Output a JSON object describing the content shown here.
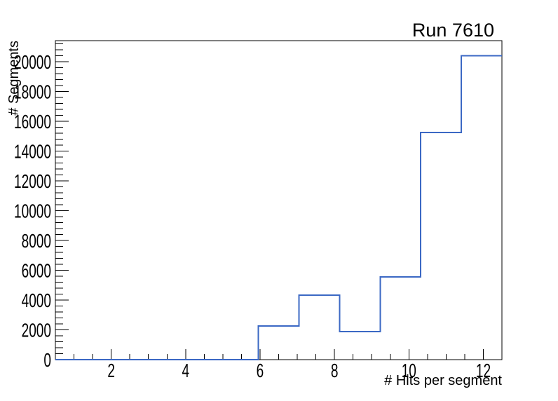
{
  "title": "Run 7610",
  "chart_data": {
    "type": "bar",
    "style": "step-histogram-outline",
    "title": "Run 7610",
    "xlabel": "# Hits per segment",
    "ylabel": "# Segments",
    "xlim": [
      0.5,
      12.5
    ],
    "ylim": [
      0,
      21420
    ],
    "bin_edges": [
      0.5,
      1.591,
      2.682,
      3.773,
      4.864,
      5.955,
      7.045,
      8.136,
      9.227,
      10.318,
      11.409,
      12.5
    ],
    "values": [
      0,
      0,
      0,
      0,
      0,
      2250,
      4330,
      1880,
      5550,
      15250,
      20400
    ],
    "x_major_ticks": [
      2,
      4,
      6,
      8,
      10,
      12
    ],
    "x_tick_labels": [
      "2",
      "4",
      "6",
      "8",
      "10",
      "12"
    ],
    "x_minor_step": 0.5,
    "y_major_ticks": [
      0,
      2000,
      4000,
      6000,
      8000,
      10000,
      12000,
      14000,
      16000,
      18000,
      20000
    ],
    "y_tick_labels": [
      "0",
      "2000",
      "4000",
      "6000",
      "8000",
      "10000",
      "12000",
      "14000",
      "16000",
      "18000",
      "20000"
    ],
    "y_minor_step": 400,
    "grid": "off",
    "legend": "none",
    "line_color": "#3b68c4",
    "axis_color": "#000000",
    "background_color": "#ffffff"
  }
}
